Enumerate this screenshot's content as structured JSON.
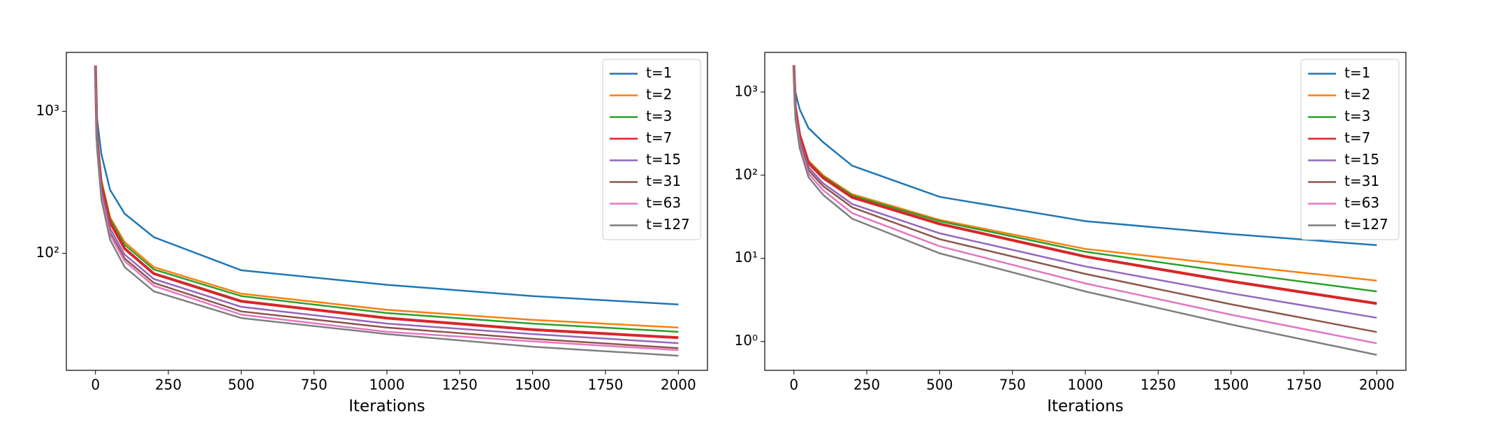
{
  "chart_data": [
    {
      "type": "line",
      "y_scale": "log",
      "xlabel": "Iterations",
      "legend": "upper right",
      "xlim": [
        -100,
        2100
      ],
      "xticks": [
        0,
        250,
        500,
        750,
        1000,
        1250,
        1500,
        1750,
        2000
      ],
      "ylim": [
        15,
        2600
      ],
      "yticks": [
        {
          "value": 100,
          "label": "10²"
        },
        {
          "value": 1000,
          "label": "10³"
        }
      ],
      "x": [
        0,
        5,
        20,
        50,
        100,
        200,
        500,
        1000,
        1500,
        2000
      ],
      "series": [
        {
          "name": "t=1",
          "color": "#1f77b4",
          "values": [
            2100,
            900,
            500,
            280,
            190,
            130,
            76,
            60,
            50,
            43.6
          ]
        },
        {
          "name": "t=2",
          "color": "#ff7f0e",
          "values": [
            2100,
            700,
            330,
            180,
            120,
            80,
            52,
            40,
            34,
            30
          ]
        },
        {
          "name": "t=3",
          "color": "#2ca02c",
          "values": [
            2100,
            680,
            320,
            175,
            115,
            77,
            50,
            38,
            32,
            28
          ]
        },
        {
          "name": "t=7",
          "color": "#d62728",
          "values": [
            2100,
            650,
            300,
            165,
            108,
            72,
            46,
            35,
            29,
            25.5
          ]
        },
        {
          "name": "t=15",
          "color": "#9467bd",
          "values": [
            2100,
            620,
            280,
            150,
            98,
            66,
            42,
            32,
            27,
            23.3
          ]
        },
        {
          "name": "t=31",
          "color": "#8c564b",
          "values": [
            2100,
            600,
            265,
            140,
            92,
            62,
            39,
            30,
            25,
            21.5
          ]
        },
        {
          "name": "t=63",
          "color": "#e377c2",
          "values": [
            2100,
            580,
            255,
            135,
            88,
            59,
            37,
            28,
            24,
            20.8
          ]
        },
        {
          "name": "t=127",
          "color": "#7f7f7f",
          "values": [
            2100,
            560,
            240,
            125,
            80,
            54,
            35,
            27,
            22,
            19
          ]
        }
      ]
    },
    {
      "type": "line",
      "y_scale": "log",
      "xlabel": "Iterations",
      "legend": "upper right",
      "xlim": [
        -100,
        2100
      ],
      "xticks": [
        0,
        250,
        500,
        750,
        1000,
        1250,
        1500,
        1750,
        2000
      ],
      "ylim": [
        0.45,
        3000
      ],
      "yticks": [
        {
          "value": 1,
          "label": "10⁰"
        },
        {
          "value": 10,
          "label": "10¹"
        },
        {
          "value": 100,
          "label": "10²"
        },
        {
          "value": 1000,
          "label": "10³"
        }
      ],
      "x": [
        0,
        5,
        20,
        50,
        100,
        200,
        500,
        1000,
        1500,
        2000
      ],
      "series": [
        {
          "name": "t=1",
          "color": "#1f77b4",
          "values": [
            2100,
            1000,
            620,
            370,
            250,
            130,
            55,
            28,
            19.6,
            14.4
          ]
        },
        {
          "name": "t=2",
          "color": "#ff7f0e",
          "values": [
            2100,
            700,
            320,
            150,
            100,
            59,
            29,
            13,
            8.3,
            5.4
          ]
        },
        {
          "name": "t=3",
          "color": "#2ca02c",
          "values": [
            2100,
            680,
            310,
            145,
            97,
            57,
            28,
            12,
            6.8,
            4.0
          ]
        },
        {
          "name": "t=7",
          "color": "#d62728",
          "values": [
            2100,
            650,
            300,
            140,
            93,
            54,
            26,
            10.5,
            5.3,
            2.86
          ]
        },
        {
          "name": "t=15",
          "color": "#9467bd",
          "values": [
            2100,
            600,
            270,
            125,
            80,
            45,
            20,
            8,
            3.8,
            1.93
          ]
        },
        {
          "name": "t=31",
          "color": "#8c564b",
          "values": [
            2100,
            560,
            250,
            115,
            74,
            41,
            17,
            6.5,
            2.8,
            1.3
          ]
        },
        {
          "name": "t=63",
          "color": "#e377c2",
          "values": [
            2100,
            520,
            230,
            105,
            66,
            35,
            14,
            5,
            2.1,
            0.95
          ]
        },
        {
          "name": "t=127",
          "color": "#7f7f7f",
          "values": [
            2100,
            480,
            210,
            95,
            58,
            30,
            11.5,
            4,
            1.6,
            0.69
          ]
        }
      ]
    }
  ]
}
